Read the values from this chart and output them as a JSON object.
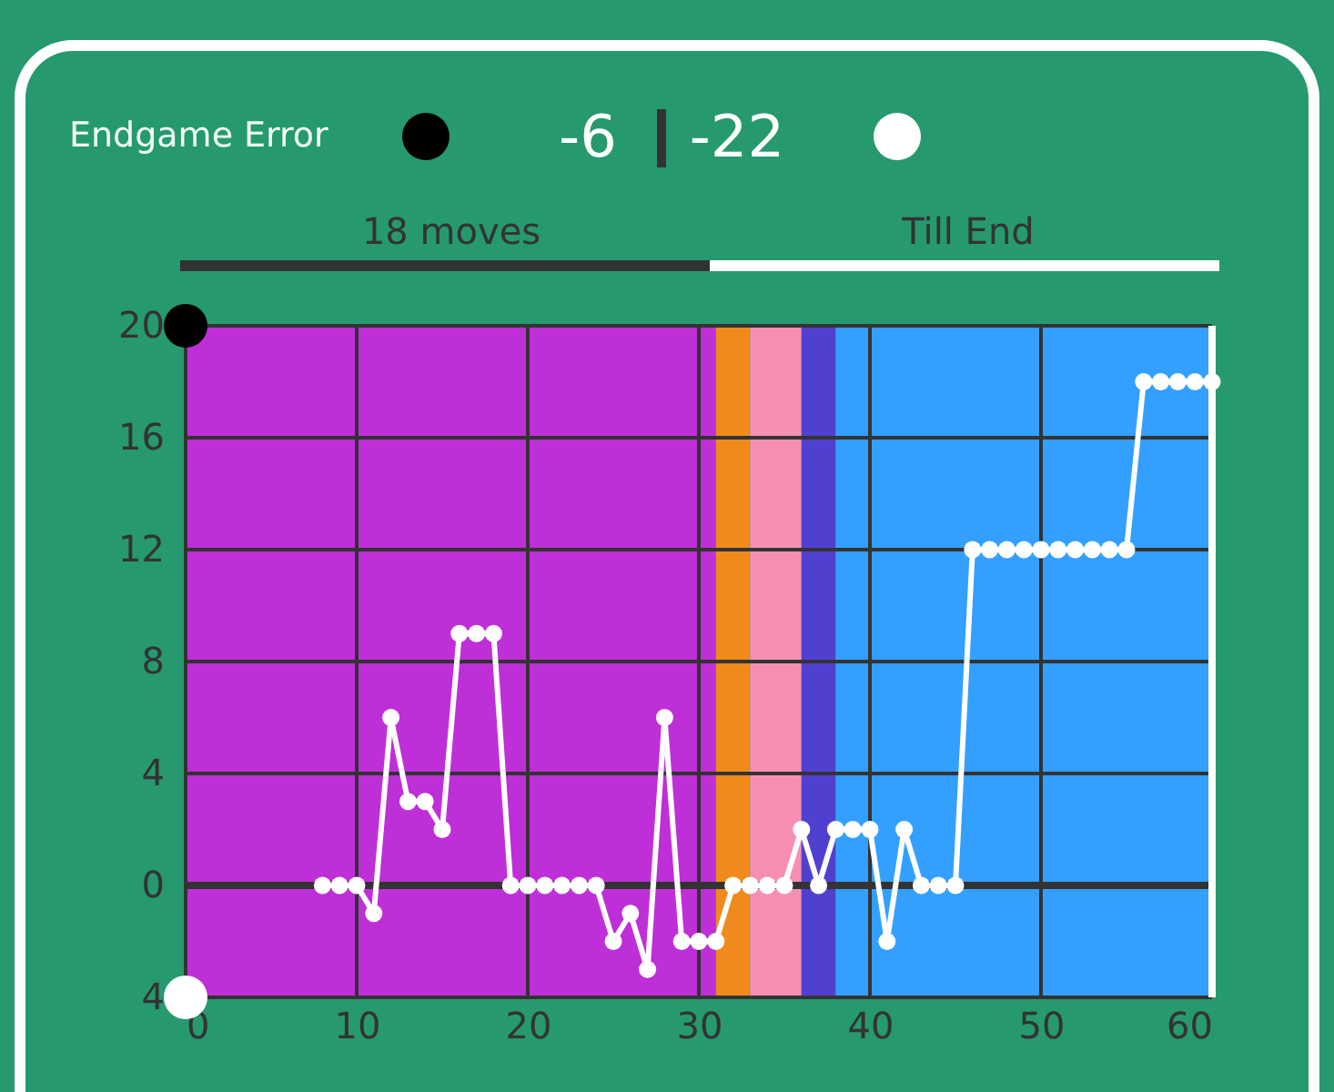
{
  "chart_data": {
    "type": "line",
    "title": "Endgame Error",
    "annotations": [
      "-6",
      "-22",
      "18 moves",
      "Till End"
    ],
    "x": [
      8,
      9,
      10,
      11,
      12,
      13,
      14,
      15,
      16,
      17,
      18,
      19,
      20,
      21,
      22,
      23,
      24,
      25,
      26,
      27,
      28,
      29,
      30,
      31,
      32,
      33,
      34,
      35,
      36,
      37,
      38,
      39,
      40,
      41,
      42,
      43,
      44,
      45,
      46,
      47,
      48,
      49,
      50,
      51,
      52,
      53,
      54,
      55,
      56,
      57,
      58,
      59,
      60
    ],
    "series": [
      {
        "color": "#ffffff",
        "values": [
          0,
          0,
          0,
          -1,
          6,
          3,
          3,
          2,
          9,
          9,
          9,
          0,
          0,
          0,
          0,
          0,
          0,
          -2,
          -1,
          -3,
          6,
          -2,
          -2,
          -2,
          0,
          0,
          0,
          0,
          2,
          0,
          2,
          2,
          2,
          -2,
          2,
          0,
          0,
          0,
          12,
          12,
          12,
          12,
          12,
          12,
          12,
          12,
          12,
          12,
          18,
          18,
          18,
          18,
          18
        ]
      }
    ],
    "xlim": [
      0,
      60
    ],
    "xticks": [
      0,
      10,
      20,
      30,
      40,
      50,
      60
    ],
    "ylim": [
      -4,
      20
    ],
    "yticks": [
      {
        "value": -4,
        "label": "4"
      },
      0,
      4,
      8,
      12,
      16,
      20
    ],
    "grid": true,
    "marker": "circle",
    "line_style": "solid",
    "bands": [
      {
        "axis": "x",
        "from": 0,
        "to": 31,
        "color": "#bf2fd8"
      },
      {
        "axis": "x",
        "from": 31,
        "to": 33,
        "color": "#f08a1a"
      },
      {
        "axis": "x",
        "from": 33,
        "to": 36,
        "color": "#f78fb3"
      },
      {
        "axis": "x",
        "from": 36,
        "to": 38,
        "color": "#5040d0"
      },
      {
        "axis": "x",
        "from": 38,
        "to": 60,
        "color": "#33a0ff"
      }
    ],
    "ref_lines": [
      {
        "axis": "y",
        "value": 0,
        "color": "#333333"
      },
      {
        "axis": "x",
        "value": 60,
        "color": "#ffffff"
      }
    ]
  }
}
